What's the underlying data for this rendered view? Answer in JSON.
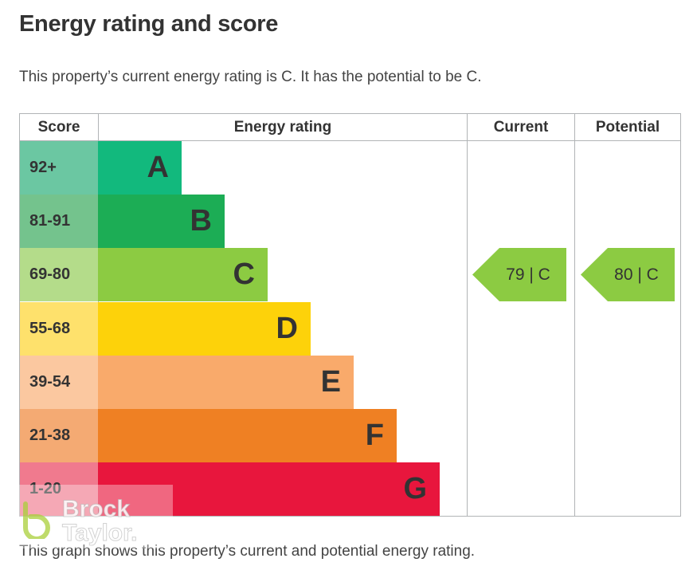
{
  "page": {
    "title": "Energy rating and score",
    "intro": "This property’s current energy rating is C. It has the potential to be C.",
    "footnote": "This graph shows this property’s current and potential energy rating."
  },
  "chart_data": {
    "type": "bar",
    "columns": [
      "Score",
      "Energy rating",
      "Current",
      "Potential"
    ],
    "bands": [
      {
        "score": "92+",
        "letter": "A",
        "color": "#12b97d",
        "score_color": "#6bc7a2"
      },
      {
        "score": "81-91",
        "letter": "B",
        "color": "#1cad55",
        "score_color": "#74c38d"
      },
      {
        "score": "69-80",
        "letter": "C",
        "color": "#8ccb42",
        "score_color": "#b4dc8a"
      },
      {
        "score": "55-68",
        "letter": "D",
        "color": "#fdd20a",
        "score_color": "#fee16c"
      },
      {
        "score": "39-54",
        "letter": "E",
        "color": "#f9aa6b",
        "score_color": "#fbc8a0"
      },
      {
        "score": "21-38",
        "letter": "F",
        "color": "#ef8023",
        "score_color": "#f4aa73"
      },
      {
        "score": "1-20",
        "letter": "G",
        "color": "#e8163d",
        "score_color": "#f07a8e"
      }
    ],
    "current": {
      "value": 79,
      "band": "C",
      "label": "79 | C",
      "color": "#8ccb42"
    },
    "potential": {
      "value": 80,
      "band": "C",
      "label": "80 | C",
      "color": "#8ccb42"
    }
  },
  "watermark": {
    "text": "Brock Taylor.",
    "color": "#a9cf3a"
  }
}
